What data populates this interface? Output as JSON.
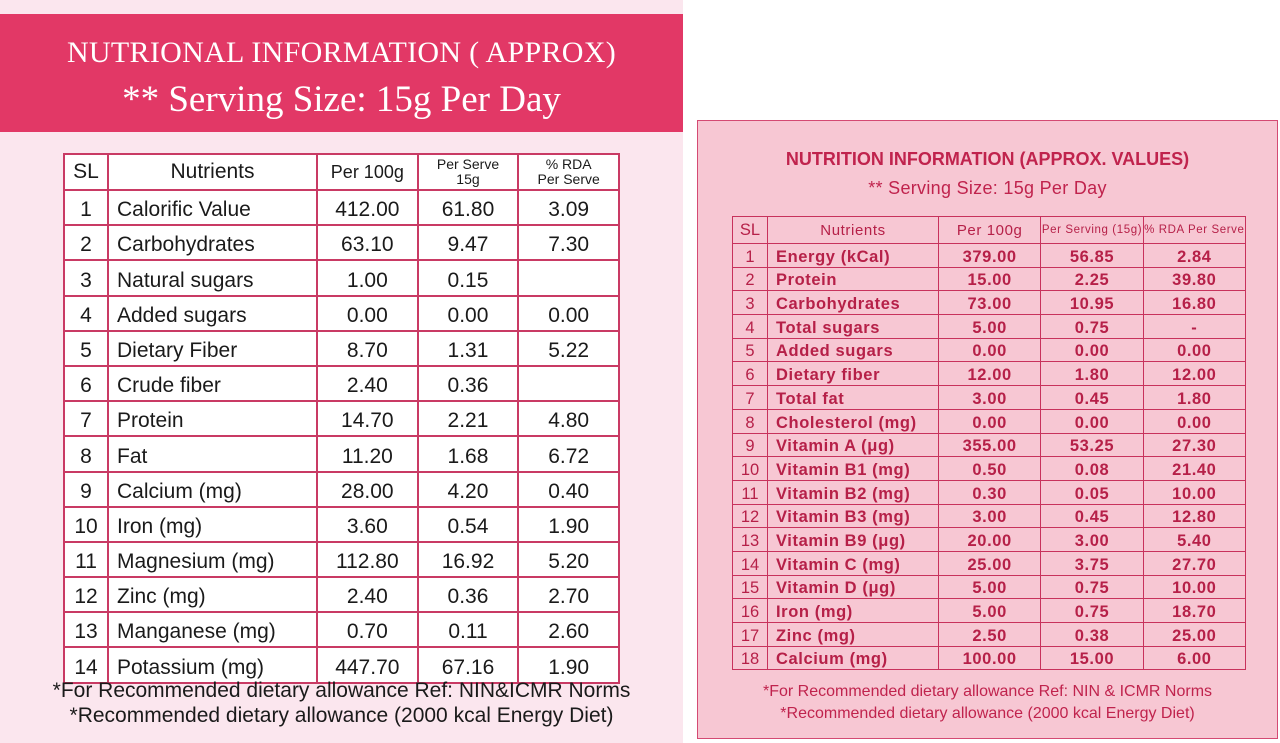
{
  "left": {
    "title": "NUTRIONAL INFORMATION ( APPROX)",
    "subtitle": "** Serving Size: 15g Per Day",
    "headers": {
      "sl": "SL",
      "nutrients": "Nutrients",
      "per100": "Per 100g",
      "perServeA": "Per Serve",
      "perServeB": "15g",
      "rdaA": "% RDA",
      "rdaB": "Per Serve"
    },
    "rows": [
      [
        "1",
        "Calorific Value",
        "412.00",
        "61.80",
        "3.09"
      ],
      [
        "2",
        "Carbohydrates",
        "63.10",
        "9.47",
        "7.30"
      ],
      [
        "3",
        "Natural sugars",
        "1.00",
        "0.15",
        ""
      ],
      [
        "4",
        "Added sugars",
        "0.00",
        "0.00",
        "0.00"
      ],
      [
        "5",
        "Dietary Fiber",
        "8.70",
        "1.31",
        "5.22"
      ],
      [
        "6",
        "Crude fiber",
        "2.40",
        "0.36",
        ""
      ],
      [
        "7",
        "Protein",
        "14.70",
        "2.21",
        "4.80"
      ],
      [
        "8",
        "Fat",
        "11.20",
        "1.68",
        "6.72"
      ],
      [
        "9",
        "Calcium (mg)",
        "28.00",
        "4.20",
        "0.40"
      ],
      [
        "10",
        "Iron  (mg)",
        "3.60",
        "0.54",
        "1.90"
      ],
      [
        "11",
        "Magnesium   (mg)",
        "112.80",
        "16.92",
        "5.20"
      ],
      [
        "12",
        "Zinc  (mg)",
        "2.40",
        "0.36",
        "2.70"
      ],
      [
        "13",
        "Manganese  (mg)",
        "0.70",
        "0.11",
        "2.60"
      ],
      [
        "14",
        "Potassium  (mg)",
        "447.70",
        "67.16",
        "1.90"
      ]
    ],
    "note1": "*For Recommended dietary allowance Ref: NIN&ICMR Norms",
    "note2": "*Recommended dietary allowance (2000 kcal Energy Diet)"
  },
  "right": {
    "title": "NUTRITION INFORMATION (APPROX. VALUES)",
    "subtitle": "** Serving Size: 15g Per Day",
    "headers": {
      "sl": "SL",
      "nutrients": "Nutrients",
      "per100": "Per 100g",
      "perServing": "Per Serving (15g)",
      "rda": "% RDA Per Serve"
    },
    "rows": [
      [
        "1",
        "Energy (kCal)",
        "379.00",
        "56.85",
        "2.84"
      ],
      [
        "2",
        "Protein",
        "15.00",
        "2.25",
        "39.80"
      ],
      [
        "3",
        "Carbohydrates",
        "73.00",
        "10.95",
        "16.80"
      ],
      [
        "4",
        "Total sugars",
        "5.00",
        "0.75",
        "-"
      ],
      [
        "5",
        "Added sugars",
        "0.00",
        "0.00",
        "0.00"
      ],
      [
        "6",
        "Dietary fiber",
        "12.00",
        "1.80",
        "12.00"
      ],
      [
        "7",
        "Total fat",
        "3.00",
        "0.45",
        "1.80"
      ],
      [
        "8",
        "Cholesterol (mg)",
        "0.00",
        "0.00",
        "0.00"
      ],
      [
        "9",
        "Vitamin A (μg)",
        "355.00",
        "53.25",
        "27.30"
      ],
      [
        "10",
        "Vitamin B1 (mg)",
        "0.50",
        "0.08",
        "21.40"
      ],
      [
        "11",
        "Vitamin B2 (mg)",
        "0.30",
        "0.05",
        "10.00"
      ],
      [
        "12",
        "Vitamin B3 (mg)",
        "3.00",
        "0.45",
        "12.80"
      ],
      [
        "13",
        "Vitamin B9  (μg)",
        "20.00",
        "3.00",
        "5.40"
      ],
      [
        "14",
        "Vitamin C (mg)",
        "25.00",
        "3.75",
        "27.70"
      ],
      [
        "15",
        "Vitamin D  (μg)",
        "5.00",
        "0.75",
        "10.00"
      ],
      [
        "16",
        "Iron (mg)",
        "5.00",
        "0.75",
        "18.70"
      ],
      [
        "17",
        "Zinc (mg)",
        "2.50",
        "0.38",
        "25.00"
      ],
      [
        "18",
        "Calcium (mg)",
        "100.00",
        "15.00",
        "6.00"
      ]
    ],
    "note1": "*For Recommended dietary allowance Ref: NIN & ICMR Norms",
    "note2": "*Recommended dietary allowance (2000 kcal Energy Diet)"
  }
}
